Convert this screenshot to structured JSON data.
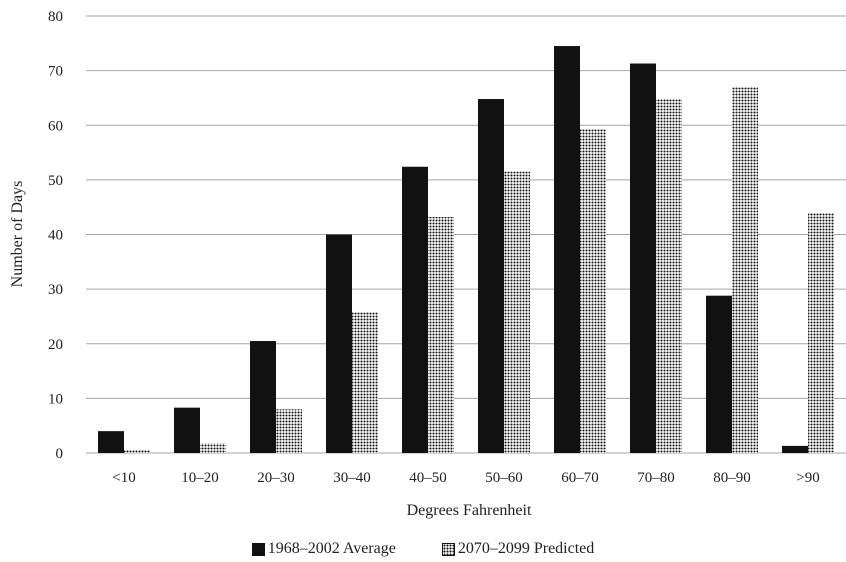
{
  "chart_data": {
    "type": "bar",
    "xlabel": "Degrees Fahrenheit",
    "ylabel": "Number of Days",
    "categories": [
      "<10",
      "10–20",
      "20–30",
      "30–40",
      "40–50",
      "50–60",
      "60–70",
      "70–80",
      "80–90",
      ">90"
    ],
    "series": [
      {
        "name": "1968–2002 Average",
        "fill": "solid",
        "values": [
          4,
          8.3,
          20.5,
          40,
          52.4,
          64.8,
          74.5,
          71.3,
          28.8,
          1.3
        ]
      },
      {
        "name": "2070–2099 Predicted",
        "fill": "dotted",
        "values": [
          0.5,
          1.8,
          8,
          25.7,
          43.2,
          51.5,
          59.3,
          64.8,
          66.9,
          44
        ]
      }
    ],
    "ylim": [
      0,
      80
    ],
    "yticks": [
      "0",
      "10",
      "20",
      "30",
      "40",
      "50",
      "60",
      "70",
      "80"
    ],
    "grid": true,
    "legend_position": "bottom-center",
    "colors": {
      "bar": "#111111",
      "grid": "#a6a6a6"
    }
  }
}
